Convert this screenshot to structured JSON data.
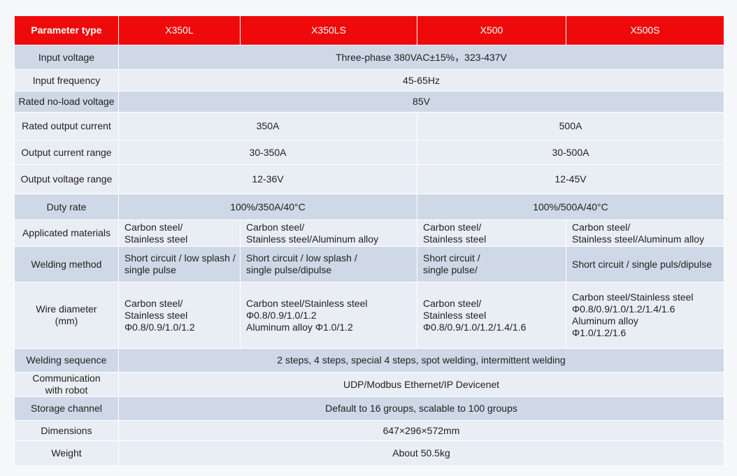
{
  "header": [
    "Parameter type",
    "X350L",
    "X350LS",
    "X500",
    "X500S"
  ],
  "colors": {
    "header_bg": "#ee0a0a",
    "row_dark": "#cfd8e6",
    "row_light": "#e9edf4"
  },
  "rows": [
    {
      "label": "Input voltage",
      "shade": "dark",
      "cells": [
        {
          "span": 4,
          "text": "Three-phase 380VAC±15%，323-437V"
        }
      ]
    },
    {
      "label": "Input frequency",
      "shade": "light",
      "cells": [
        {
          "span": 4,
          "text": "45-65Hz"
        }
      ]
    },
    {
      "label": "Rated no-load voltage",
      "shade": "dark",
      "cells": [
        {
          "span": 4,
          "text": "85V"
        }
      ]
    },
    {
      "label": "Rated output current",
      "shade": "light",
      "cells": [
        {
          "span": 2,
          "text": "350A"
        },
        {
          "span": 2,
          "text": "500A"
        }
      ]
    },
    {
      "label": "Output current range",
      "shade": "light",
      "cells": [
        {
          "span": 2,
          "text": "30-350A"
        },
        {
          "span": 2,
          "text": "30-500A"
        }
      ]
    },
    {
      "label": "Output voltage range",
      "shade": "light",
      "cells": [
        {
          "span": 2,
          "text": "12-36V"
        },
        {
          "span": 2,
          "text": "12-45V"
        }
      ]
    },
    {
      "label": "Duty rate",
      "shade": "dark",
      "cells": [
        {
          "span": 2,
          "text": "100%/350A/40°C"
        },
        {
          "span": 2,
          "text": "100%/500A/40°C"
        }
      ]
    },
    {
      "label": "Applicated  materials",
      "shade": "light",
      "cells": [
        {
          "span": 1,
          "text": "Carbon steel/\nStainless steel",
          "align": "l"
        },
        {
          "span": 1,
          "text": "Carbon steel/\nStainless steel/Aluminum alloy",
          "align": "l"
        },
        {
          "span": 1,
          "text": "Carbon steel/\nStainless steel",
          "align": "l"
        },
        {
          "span": 1,
          "text": "Carbon steel/\nStainless steel/Aluminum alloy",
          "align": "l"
        }
      ]
    },
    {
      "label": "Welding method",
      "shade": "dark",
      "cells": [
        {
          "span": 1,
          "text": "Short circuit / low splash /\nsingle pulse",
          "align": "l"
        },
        {
          "span": 1,
          "text": "Short circuit / low splash /\nsingle pulse/dipulse",
          "align": "l"
        },
        {
          "span": 1,
          "text": "Short circuit /\nsingle pulse/",
          "align": "l"
        },
        {
          "span": 1,
          "text": "Short circuit / single puls/dipulse",
          "align": "l"
        }
      ]
    },
    {
      "label": "Wire diameter\n(mm)",
      "shade": "light",
      "cells": [
        {
          "span": 1,
          "text": "Carbon steel/\nStainless steel\nΦ0.8/0.9/1.0/1.2",
          "align": "l"
        },
        {
          "span": 1,
          "text": "Carbon steel/Stainless steel\nΦ0.8/0.9/1.0/1.2\nAluminum alloy Φ1.0/1.2",
          "align": "l"
        },
        {
          "span": 1,
          "text": "Carbon steel/\nStainless steel\nΦ0.8/0.9/1.0/1.2/1.4/1.6",
          "align": "l"
        },
        {
          "span": 1,
          "text": "Carbon steel/Stainless steel\nΦ0.8/0.9/1.0/1.2/1.4/1.6\nAluminum alloy\nΦ1.0/1.2/1.6",
          "align": "l"
        }
      ]
    },
    {
      "label": "Welding sequence",
      "shade": "dark",
      "cells": [
        {
          "span": 4,
          "text": "2 steps, 4 steps, special 4 steps, spot welding, intermittent welding"
        }
      ]
    },
    {
      "label": "Communication\nwith robot",
      "shade": "light",
      "cells": [
        {
          "span": 4,
          "text": "UDP/Modbus   Ethernet/IP   Devicenet"
        }
      ]
    },
    {
      "label": "Storage channel",
      "shade": "dark",
      "cells": [
        {
          "span": 4,
          "text": "Default to 16 groups, scalable to 100 groups"
        }
      ]
    },
    {
      "label": "Dimensions",
      "shade": "light",
      "cells": [
        {
          "span": 4,
          "text": "647×296×572mm"
        }
      ]
    },
    {
      "label": "Weight",
      "shade": "light",
      "cells": [
        {
          "span": 4,
          "text": "About 50.5kg"
        }
      ]
    }
  ]
}
